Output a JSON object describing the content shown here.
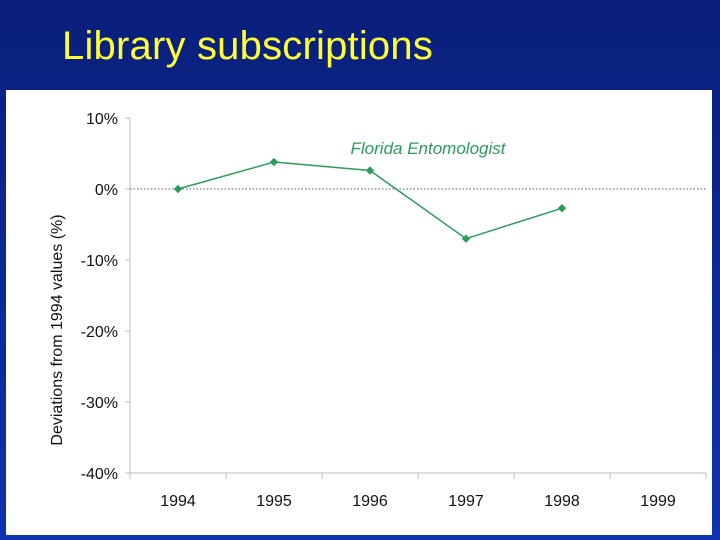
{
  "slide": {
    "title": "Library subscriptions"
  },
  "chart_data": {
    "type": "line",
    "title": "",
    "xlabel": "",
    "ylabel": "Deviations from 1994 values (%)",
    "categories": [
      "1994",
      "1995",
      "1996",
      "1997",
      "1998",
      "1999"
    ],
    "y_ticks": [
      10,
      0,
      -10,
      -20,
      -30,
      -40
    ],
    "y_tick_labels": [
      "10%",
      "0%",
      "-10%",
      "-20%",
      "-30%",
      "-40%"
    ],
    "ylim": [
      -40,
      10
    ],
    "reference_line": {
      "y": 0,
      "style": "dotted"
    },
    "series": [
      {
        "name": "Florida Entomologist",
        "values": [
          0,
          3.8,
          2.6,
          -7,
          -2.7,
          null
        ],
        "color": "#2e9a5c",
        "marker": "diamond"
      }
    ],
    "grid": false,
    "legend": "inline-label-top-center"
  }
}
